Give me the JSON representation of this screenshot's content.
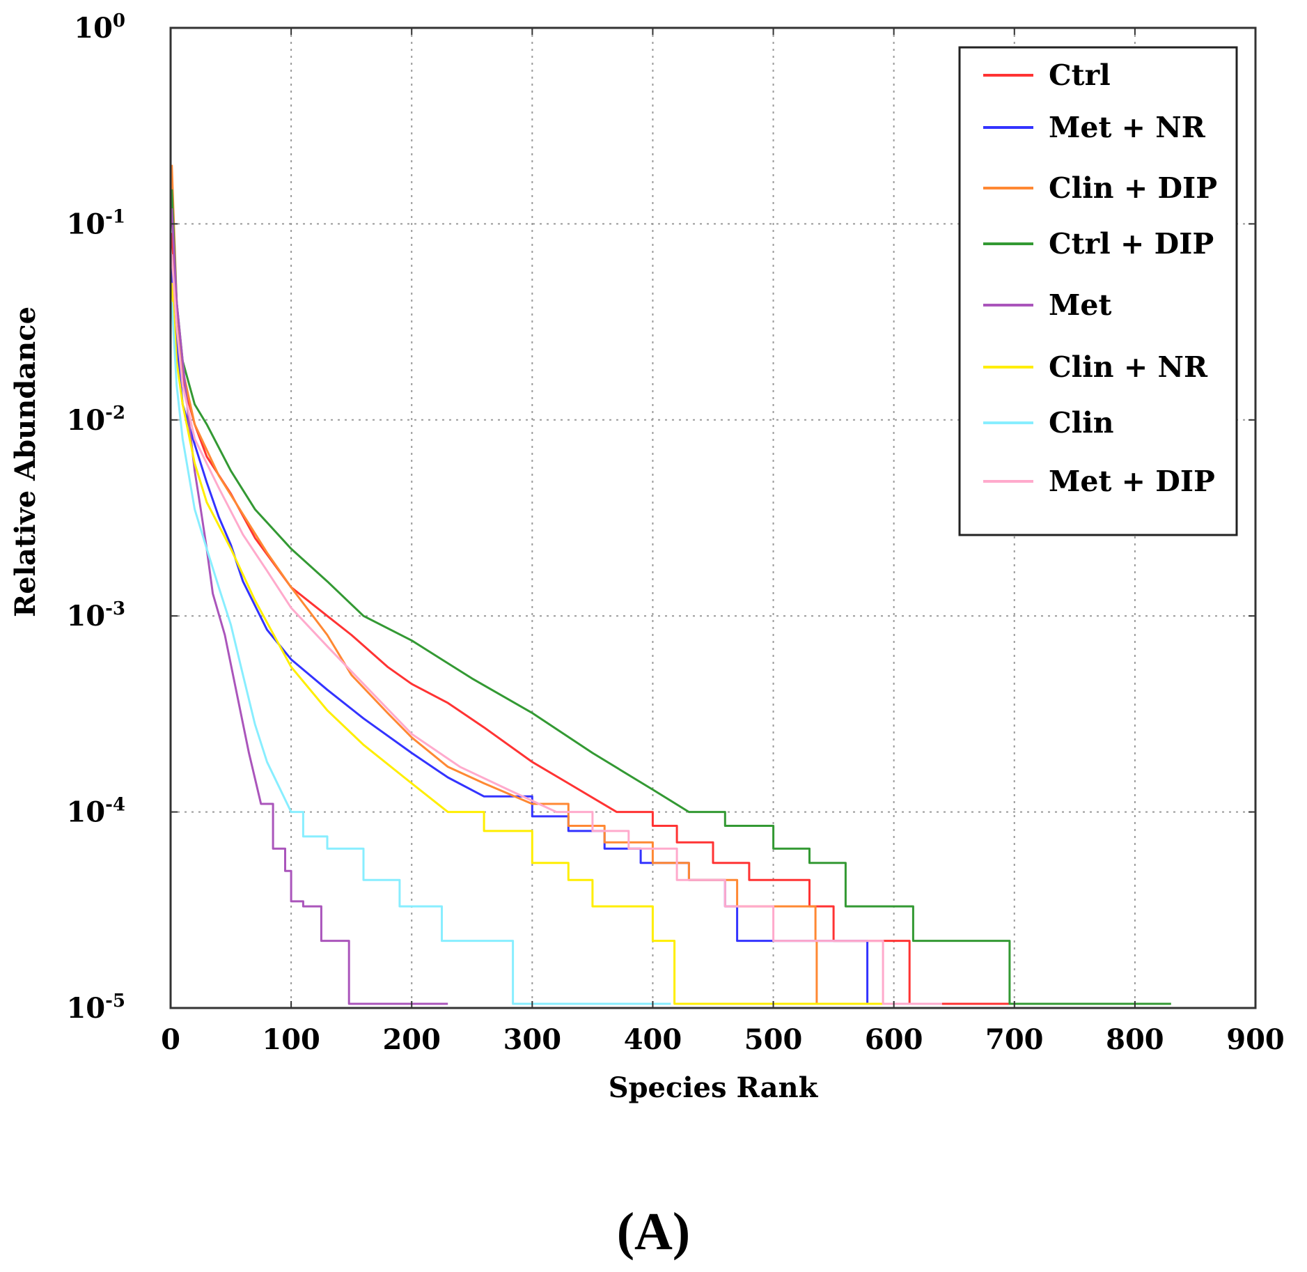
{
  "chart_data": {
    "type": "line",
    "title": "",
    "xlabel": "Species Rank",
    "ylabel": "Relative Abundance",
    "xlim": [
      0,
      900
    ],
    "ylim": [
      1e-05,
      1
    ],
    "yscale": "log",
    "grid": true,
    "legend_position": "top-right",
    "x_ticks": [
      0,
      100,
      200,
      300,
      400,
      500,
      600,
      700,
      800,
      900
    ],
    "y_ticks": [
      {
        "value": 1,
        "base": "10",
        "exp": "0"
      },
      {
        "value": 0.1,
        "base": "10",
        "exp": "-1"
      },
      {
        "value": 0.01,
        "base": "10",
        "exp": "-2"
      },
      {
        "value": 0.001,
        "base": "10",
        "exp": "-3"
      },
      {
        "value": 0.0001,
        "base": "10",
        "exp": "-4"
      },
      {
        "value": 1e-05,
        "base": "10",
        "exp": "-5"
      }
    ],
    "series": [
      {
        "name": "Ctrl",
        "color": "#ff3333",
        "points": [
          [
            1,
            0.09
          ],
          [
            5,
            0.035
          ],
          [
            10,
            0.016
          ],
          [
            20,
            0.0095
          ],
          [
            30,
            0.0065
          ],
          [
            50,
            0.0042
          ],
          [
            70,
            0.0025
          ],
          [
            100,
            0.0014
          ],
          [
            130,
            0.001
          ],
          [
            150,
            0.0008
          ],
          [
            180,
            0.00055
          ],
          [
            200,
            0.00045
          ],
          [
            230,
            0.00036
          ],
          [
            260,
            0.00027
          ],
          [
            300,
            0.00018
          ],
          [
            330,
            0.00014
          ],
          [
            370,
            0.0001
          ],
          [
            400,
            8.5e-05
          ],
          [
            420,
            7e-05
          ],
          [
            450,
            5.5e-05
          ],
          [
            480,
            4.5e-05
          ],
          [
            530,
            3.3e-05
          ],
          [
            550,
            2.2e-05
          ],
          [
            612,
            2.2e-05
          ],
          [
            613,
            1.05e-05
          ],
          [
            720,
            1.05e-05
          ]
        ]
      },
      {
        "name": "Met + NR",
        "color": "#3333ff",
        "points": [
          [
            1,
            0.06
          ],
          [
            5,
            0.025
          ],
          [
            10,
            0.012
          ],
          [
            20,
            0.0075
          ],
          [
            30,
            0.0048
          ],
          [
            40,
            0.0032
          ],
          [
            50,
            0.0023
          ],
          [
            60,
            0.0015
          ],
          [
            80,
            0.00085
          ],
          [
            100,
            0.0006
          ],
          [
            130,
            0.00042
          ],
          [
            160,
            0.0003
          ],
          [
            200,
            0.0002
          ],
          [
            230,
            0.00015
          ],
          [
            260,
            0.00012
          ],
          [
            300,
            9.5e-05
          ],
          [
            330,
            8e-05
          ],
          [
            360,
            6.5e-05
          ],
          [
            390,
            5.5e-05
          ],
          [
            430,
            4.5e-05
          ],
          [
            460,
            3.3e-05
          ],
          [
            470,
            2.2e-05
          ],
          [
            577,
            2.2e-05
          ],
          [
            578,
            1.05e-05
          ],
          [
            600,
            1.05e-05
          ]
        ]
      },
      {
        "name": "Clin + DIP",
        "color": "#ff8833",
        "points": [
          [
            1,
            0.2
          ],
          [
            5,
            0.04
          ],
          [
            10,
            0.018
          ],
          [
            20,
            0.0095
          ],
          [
            40,
            0.0052
          ],
          [
            60,
            0.0033
          ],
          [
            80,
            0.0021
          ],
          [
            100,
            0.0014
          ],
          [
            130,
            0.0008
          ],
          [
            150,
            0.0005
          ],
          [
            180,
            0.00032
          ],
          [
            200,
            0.00024
          ],
          [
            230,
            0.00017
          ],
          [
            260,
            0.00014
          ],
          [
            300,
            0.00011
          ],
          [
            330,
            8.5e-05
          ],
          [
            360,
            7e-05
          ],
          [
            400,
            5.5e-05
          ],
          [
            430,
            4.5e-05
          ],
          [
            470,
            3.3e-05
          ],
          [
            535,
            2.2e-05
          ],
          [
            536,
            1.05e-05
          ],
          [
            570,
            1.05e-05
          ]
        ]
      },
      {
        "name": "Ctrl + DIP",
        "color": "#339933",
        "points": [
          [
            1,
            0.15
          ],
          [
            5,
            0.04
          ],
          [
            10,
            0.02
          ],
          [
            20,
            0.012
          ],
          [
            30,
            0.0095
          ],
          [
            50,
            0.0055
          ],
          [
            70,
            0.0035
          ],
          [
            100,
            0.0022
          ],
          [
            130,
            0.0015
          ],
          [
            160,
            0.001
          ],
          [
            200,
            0.00075
          ],
          [
            250,
            0.00048
          ],
          [
            300,
            0.00032
          ],
          [
            350,
            0.0002
          ],
          [
            400,
            0.00013
          ],
          [
            430,
            0.0001
          ],
          [
            460,
            8.5e-05
          ],
          [
            500,
            6.5e-05
          ],
          [
            530,
            5.5e-05
          ],
          [
            560,
            3.3e-05
          ],
          [
            615,
            3.3e-05
          ],
          [
            616,
            2.2e-05
          ],
          [
            695,
            2.2e-05
          ],
          [
            696,
            1.05e-05
          ],
          [
            830,
            1.05e-05
          ]
        ]
      },
      {
        "name": "Met",
        "color": "#aa55bb",
        "points": [
          [
            1,
            0.12
          ],
          [
            5,
            0.04
          ],
          [
            10,
            0.02
          ],
          [
            15,
            0.01
          ],
          [
            20,
            0.0055
          ],
          [
            25,
            0.0035
          ],
          [
            30,
            0.0022
          ],
          [
            35,
            0.0013
          ],
          [
            45,
            0.0008
          ],
          [
            55,
            0.0004
          ],
          [
            65,
            0.0002
          ],
          [
            75,
            0.00011
          ],
          [
            85,
            6.5e-05
          ],
          [
            95,
            5e-05
          ],
          [
            100,
            3.5e-05
          ],
          [
            110,
            3.3e-05
          ],
          [
            125,
            2.2e-05
          ],
          [
            140,
            2.2e-05
          ],
          [
            148,
            1.05e-05
          ],
          [
            230,
            1.05e-05
          ]
        ]
      },
      {
        "name": "Clin + NR",
        "color": "#ffee00",
        "points": [
          [
            1,
            0.05
          ],
          [
            5,
            0.02
          ],
          [
            10,
            0.012
          ],
          [
            20,
            0.006
          ],
          [
            30,
            0.0038
          ],
          [
            50,
            0.0022
          ],
          [
            70,
            0.0012
          ],
          [
            100,
            0.00055
          ],
          [
            130,
            0.00033
          ],
          [
            160,
            0.00022
          ],
          [
            200,
            0.00014
          ],
          [
            230,
            0.0001
          ],
          [
            260,
            8e-05
          ],
          [
            300,
            5.5e-05
          ],
          [
            330,
            4.5e-05
          ],
          [
            350,
            3.3e-05
          ],
          [
            400,
            2.2e-05
          ],
          [
            417,
            2.2e-05
          ],
          [
            418,
            1.05e-05
          ],
          [
            620,
            1.05e-05
          ]
        ]
      },
      {
        "name": "Clin",
        "color": "#88eeff",
        "points": [
          [
            1,
            0.04
          ],
          [
            5,
            0.015
          ],
          [
            10,
            0.008
          ],
          [
            20,
            0.0035
          ],
          [
            30,
            0.0022
          ],
          [
            40,
            0.0014
          ],
          [
            50,
            0.0009
          ],
          [
            60,
            0.0005
          ],
          [
            70,
            0.00028
          ],
          [
            80,
            0.00018
          ],
          [
            100,
            0.0001
          ],
          [
            110,
            7.5e-05
          ],
          [
            130,
            6.5e-05
          ],
          [
            160,
            4.5e-05
          ],
          [
            190,
            3.3e-05
          ],
          [
            225,
            2.2e-05
          ],
          [
            283,
            2.2e-05
          ],
          [
            284,
            1.05e-05
          ],
          [
            415,
            1.05e-05
          ]
        ]
      },
      {
        "name": "Met + DIP",
        "color": "#ffaacc",
        "points": [
          [
            1,
            0.07
          ],
          [
            5,
            0.03
          ],
          [
            10,
            0.015
          ],
          [
            20,
            0.008
          ],
          [
            40,
            0.0045
          ],
          [
            60,
            0.0026
          ],
          [
            80,
            0.0017
          ],
          [
            100,
            0.0011
          ],
          [
            130,
            0.0007
          ],
          [
            160,
            0.00045
          ],
          [
            200,
            0.00025
          ],
          [
            240,
            0.00017
          ],
          [
            280,
            0.00013
          ],
          [
            320,
            0.0001
          ],
          [
            350,
            8e-05
          ],
          [
            380,
            6.5e-05
          ],
          [
            420,
            4.5e-05
          ],
          [
            460,
            3.3e-05
          ],
          [
            500,
            2.2e-05
          ],
          [
            590,
            2.2e-05
          ],
          [
            591,
            1.05e-05
          ],
          [
            640,
            1.05e-05
          ]
        ]
      }
    ]
  },
  "panel_label": "(A)"
}
